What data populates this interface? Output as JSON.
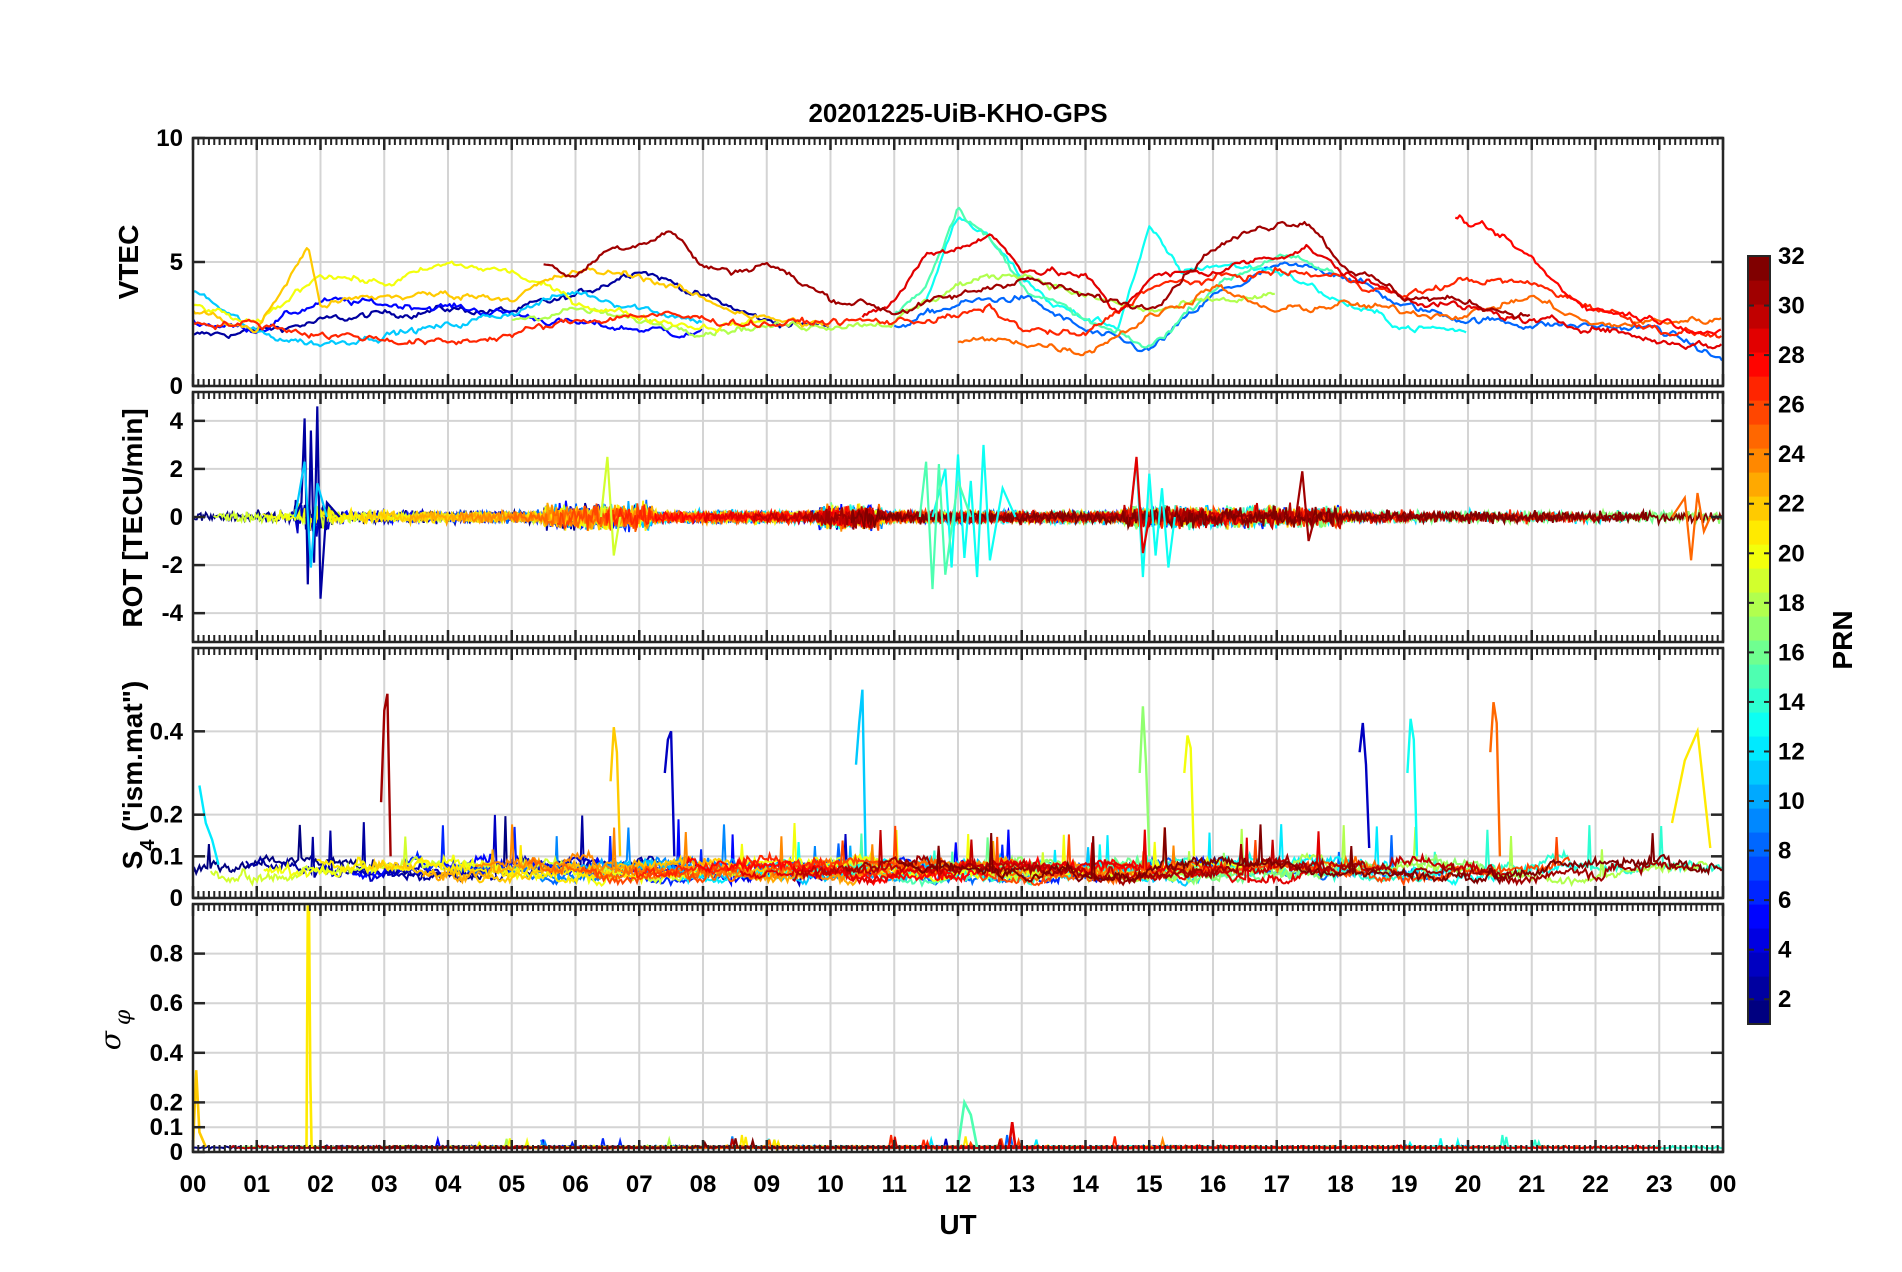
{
  "figure": {
    "title": "20201225-UiB-KHO-GPS",
    "xlabel": "UT",
    "x_tick_labels": [
      "00",
      "01",
      "02",
      "03",
      "04",
      "05",
      "06",
      "07",
      "08",
      "09",
      "10",
      "11",
      "12",
      "13",
      "14",
      "15",
      "16",
      "17",
      "18",
      "19",
      "20",
      "21",
      "22",
      "23",
      "00"
    ]
  },
  "colorbar": {
    "label": "PRN",
    "colormap": "jet",
    "range": [
      1,
      32
    ],
    "tick_labels": [
      "2",
      "4",
      "6",
      "8",
      "10",
      "12",
      "14",
      "16",
      "18",
      "20",
      "22",
      "24",
      "26",
      "28",
      "30",
      "32"
    ]
  },
  "chart_data": [
    {
      "type": "line",
      "panel": "vtec",
      "ylabel": "VTEC",
      "xlim": [
        0,
        24
      ],
      "ylim": [
        0,
        10
      ],
      "y_tick_labels": [
        "0",
        "5",
        "10"
      ],
      "grid": true,
      "series_color_by": "PRN",
      "series": [
        {
          "prn": 2,
          "x": [
            0,
            1,
            2,
            3,
            4,
            5,
            6,
            7,
            8,
            9,
            10
          ],
          "y": [
            2.0,
            2.2,
            2.6,
            2.9,
            3.1,
            3.0,
            3.6,
            4.8,
            3.6,
            2.6,
            2.4
          ]
        },
        {
          "prn": 5,
          "x": [
            0,
            1,
            2,
            3,
            4,
            5,
            6,
            7,
            8
          ],
          "y": [
            2.6,
            2.3,
            3.4,
            3.3,
            3.2,
            2.9,
            2.5,
            2.3,
            2.1
          ]
        },
        {
          "prn": 8,
          "x": [
            11,
            12,
            13,
            14,
            15,
            16,
            17,
            18,
            19,
            20,
            21,
            22,
            23,
            24
          ],
          "y": [
            2.4,
            3.3,
            3.6,
            2.2,
            1.4,
            3.6,
            4.8,
            4.6,
            3.2,
            2.7,
            2.5,
            2.4,
            2.3,
            1.0
          ]
        },
        {
          "prn": 11,
          "x": [
            0,
            1,
            2,
            3,
            4,
            5,
            6,
            7,
            8
          ],
          "y": [
            3.9,
            2.1,
            1.7,
            2.1,
            2.4,
            3.0,
            3.8,
            3.2,
            2.6
          ]
        },
        {
          "prn": 13,
          "x": [
            11.5,
            12,
            12.5,
            13,
            13.5,
            14,
            14.5,
            15,
            15.5,
            16,
            17,
            18,
            19,
            20
          ],
          "y": [
            3.5,
            6.8,
            5.9,
            4.4,
            3.3,
            2.7,
            2.4,
            6.3,
            4.6,
            4.9,
            4.7,
            3.4,
            2.4,
            2.2
          ]
        },
        {
          "prn": 15,
          "x": [
            11,
            11.5,
            12,
            12.5,
            13,
            14,
            15,
            16,
            17,
            18
          ],
          "y": [
            2.8,
            4.1,
            7.3,
            5.9,
            4.1,
            2.6,
            1.5,
            4.0,
            5.3,
            4.4
          ]
        },
        {
          "prn": 18,
          "x": [
            5,
            6,
            7,
            8,
            9,
            10,
            11,
            12,
            13,
            14,
            15,
            16,
            17
          ],
          "y": [
            2.7,
            3.1,
            2.6,
            2.3,
            2.4,
            2.5,
            2.6,
            4.1,
            4.6,
            3.6,
            3.0,
            3.4,
            3.6
          ]
        },
        {
          "prn": 20,
          "x": [
            0,
            1,
            2,
            3,
            4,
            5,
            6,
            7,
            8,
            9
          ],
          "y": [
            3.3,
            2.4,
            4.6,
            4.1,
            4.9,
            4.6,
            3.4,
            2.8,
            2.4,
            2.6
          ]
        },
        {
          "prn": 22,
          "x": [
            0,
            1,
            1.8,
            2,
            3,
            4,
            5,
            6,
            7,
            8,
            9,
            10
          ],
          "y": [
            3.1,
            2.2,
            5.6,
            3.3,
            3.6,
            3.7,
            3.6,
            4.6,
            4.5,
            3.5,
            2.7,
            2.4
          ]
        },
        {
          "prn": 25,
          "x": [
            12,
            13,
            14,
            15,
            15.5,
            16,
            16.5,
            17,
            18,
            19,
            20,
            21,
            22,
            23,
            24
          ],
          "y": [
            1.8,
            1.8,
            1.4,
            2.8,
            3.3,
            4.1,
            3.4,
            3.0,
            3.3,
            3.0,
            2.9,
            3.6,
            2.4,
            2.6,
            2.7
          ]
        },
        {
          "prn": 27,
          "x": [
            0,
            1,
            2,
            3,
            4,
            5,
            6,
            7,
            8,
            9,
            10,
            11,
            12,
            12.5,
            13,
            14,
            15,
            16,
            17,
            18,
            19,
            20,
            21,
            22,
            23,
            24
          ],
          "y": [
            2.6,
            2.5,
            2.1,
            1.9,
            1.7,
            2.1,
            2.6,
            2.9,
            2.7,
            2.5,
            2.6,
            2.6,
            2.8,
            3.1,
            2.3,
            2.0,
            4.0,
            4.3,
            4.6,
            4.4,
            3.6,
            4.3,
            4.1,
            3.2,
            2.3,
            2.0
          ]
        },
        {
          "prn": 28,
          "x": [
            19.8,
            20.5,
            21,
            21.5,
            22,
            23,
            24
          ],
          "y": [
            6.8,
            6.0,
            5.1,
            3.8,
            3.1,
            2.7,
            2.1
          ]
        },
        {
          "prn": 29,
          "x": [
            10.5,
            11,
            11.5,
            12,
            12.5,
            13,
            14,
            14.5,
            15,
            16,
            17,
            17.5,
            18,
            19,
            20,
            21,
            22,
            23,
            24
          ],
          "y": [
            2.7,
            3.4,
            5.3,
            5.6,
            6.1,
            4.8,
            4.4,
            2.9,
            4.4,
            4.6,
            5.3,
            5.6,
            4.6,
            3.6,
            3.1,
            2.6,
            2.4,
            1.8,
            1.6
          ]
        },
        {
          "prn": 31,
          "x": [
            5.5,
            6,
            6.5,
            7,
            7.5,
            8,
            8.5,
            9,
            9.5,
            10,
            10.5,
            11,
            12,
            13,
            14,
            15,
            16,
            17,
            17.5,
            18,
            19,
            20,
            21
          ],
          "y": [
            5.0,
            4.4,
            5.5,
            5.8,
            6.3,
            4.8,
            4.6,
            5.0,
            4.2,
            3.5,
            3.4,
            3.0,
            3.6,
            4.4,
            3.6,
            3.2,
            5.6,
            6.6,
            6.7,
            5.0,
            3.6,
            3.4,
            2.8
          ]
        }
      ]
    },
    {
      "type": "line",
      "panel": "rot",
      "ylabel": "ROT [TECU/min]",
      "xlim": [
        0,
        24
      ],
      "ylim": [
        -5.2,
        5.2
      ],
      "y_tick_labels": [
        "-4",
        "-2",
        "0",
        "2",
        "4"
      ],
      "grid": true,
      "series_color_by": "PRN",
      "series": [
        {
          "prn": 2,
          "x": [
            1.6,
            1.7,
            1.75,
            1.8,
            1.85,
            1.9,
            1.95,
            2.0,
            2.1,
            2.3
          ],
          "y": [
            0,
            0.6,
            4.1,
            -2.8,
            3.6,
            -1.9,
            4.6,
            -3.4,
            0.6,
            0
          ]
        },
        {
          "prn": 11,
          "x": [
            1.6,
            1.75,
            1.85,
            1.95,
            2.1
          ],
          "y": [
            0,
            2.3,
            -2.1,
            1.4,
            0
          ]
        },
        {
          "prn": 13,
          "x": [
            11.6,
            11.8,
            11.9,
            12.0,
            12.1,
            12.2,
            12.3,
            12.4,
            12.5,
            12.7,
            12.9
          ],
          "y": [
            0,
            2.0,
            -2.1,
            2.6,
            -1.7,
            1.5,
            -2.5,
            3.0,
            -1.8,
            1.2,
            0
          ]
        },
        {
          "prn": 15,
          "x": [
            11.4,
            11.5,
            11.6,
            11.7,
            11.8,
            12.0,
            12.2
          ],
          "y": [
            0,
            2.3,
            -3.0,
            2.2,
            -2.4,
            1.5,
            0
          ]
        },
        {
          "prn": 13,
          "x": [
            14.7,
            14.8,
            14.9,
            15.0,
            15.1,
            15.2,
            15.3,
            15.4
          ],
          "y": [
            0,
            2.4,
            -2.5,
            1.8,
            -1.6,
            1.2,
            -2.1,
            0
          ]
        },
        {
          "prn": 19,
          "x": [
            6.4,
            6.5,
            6.6,
            6.7
          ],
          "y": [
            0,
            2.5,
            -1.6,
            0
          ]
        },
        {
          "prn": 25,
          "x": [
            23.2,
            23.4,
            23.5,
            23.6,
            23.7,
            23.8
          ],
          "y": [
            0,
            0.8,
            -1.8,
            1.0,
            -0.6,
            0
          ]
        },
        {
          "prn": 29,
          "x": [
            14.7,
            14.8,
            14.9,
            15.0
          ],
          "y": [
            0,
            2.5,
            -1.5,
            0
          ]
        },
        {
          "prn": 31,
          "x": [
            17.3,
            17.4,
            17.5,
            17.6
          ],
          "y": [
            0,
            1.9,
            -1.0,
            0
          ]
        }
      ]
    },
    {
      "type": "line",
      "panel": "s4",
      "ylabel": "S4 (\"ism.mat\")",
      "xlim": [
        0,
        24
      ],
      "ylim": [
        0,
        0.6
      ],
      "y_tick_labels": [
        "0",
        "0.1",
        "0.2",
        "0.4"
      ],
      "grid": true,
      "series_color_by": "PRN",
      "series": [
        {
          "prn": 31,
          "x": [
            2.95,
            3.0,
            3.05,
            3.1
          ],
          "y": [
            0.23,
            0.45,
            0.49,
            0.1
          ]
        },
        {
          "prn": 3,
          "x": [
            7.4,
            7.45,
            7.5,
            7.55
          ],
          "y": [
            0.3,
            0.38,
            0.4,
            0.1
          ]
        },
        {
          "prn": 22,
          "x": [
            6.55,
            6.6,
            6.65,
            6.7
          ],
          "y": [
            0.28,
            0.41,
            0.35,
            0.1
          ]
        },
        {
          "prn": 11,
          "x": [
            10.4,
            10.45,
            10.5,
            10.55
          ],
          "y": [
            0.32,
            0.42,
            0.5,
            0.1
          ]
        },
        {
          "prn": 17,
          "x": [
            14.85,
            14.9,
            14.95,
            15.0
          ],
          "y": [
            0.3,
            0.46,
            0.32,
            0.1
          ]
        },
        {
          "prn": 20,
          "x": [
            15.55,
            15.6,
            15.65,
            15.7
          ],
          "y": [
            0.3,
            0.39,
            0.36,
            0.1
          ]
        },
        {
          "prn": 3,
          "x": [
            18.3,
            18.35,
            18.4,
            18.45
          ],
          "y": [
            0.35,
            0.42,
            0.32,
            0.12
          ]
        },
        {
          "prn": 13,
          "x": [
            19.05,
            19.1,
            19.15,
            19.2
          ],
          "y": [
            0.3,
            0.43,
            0.38,
            0.1
          ]
        },
        {
          "prn": 25,
          "x": [
            20.35,
            20.4,
            20.45,
            20.5
          ],
          "y": [
            0.35,
            0.47,
            0.42,
            0.1
          ]
        },
        {
          "prn": 21,
          "x": [
            23.2,
            23.4,
            23.6,
            23.8
          ],
          "y": [
            0.18,
            0.33,
            0.4,
            0.12
          ]
        },
        {
          "prn": 12,
          "x": [
            0.1,
            0.2,
            0.3,
            0.4
          ],
          "y": [
            0.27,
            0.18,
            0.14,
            0.08
          ]
        }
      ]
    },
    {
      "type": "line",
      "panel": "sigma_phi",
      "ylabel": "σφ",
      "xlim": [
        0,
        24
      ],
      "ylim": [
        0,
        1
      ],
      "y_tick_labels": [
        "0",
        "0.1",
        "0.2",
        "0.4",
        "0.6",
        "0.8"
      ],
      "grid": true,
      "series_color_by": "PRN",
      "series": [
        {
          "prn": 21,
          "x": [
            1.78,
            1.8,
            1.82,
            1.84,
            1.86
          ],
          "y": [
            0.02,
            0.99,
            0.99,
            0.3,
            0.02
          ]
        },
        {
          "prn": 22,
          "x": [
            0,
            0.05,
            0.1,
            0.2
          ],
          "y": [
            0.02,
            0.33,
            0.08,
            0.02
          ]
        },
        {
          "prn": 15,
          "x": [
            12.0,
            12.1,
            12.2,
            12.3
          ],
          "y": [
            0.02,
            0.2,
            0.15,
            0.02
          ]
        },
        {
          "prn": 29,
          "x": [
            12.8,
            12.85,
            12.9
          ],
          "y": [
            0.02,
            0.12,
            0.02
          ]
        }
      ]
    }
  ]
}
